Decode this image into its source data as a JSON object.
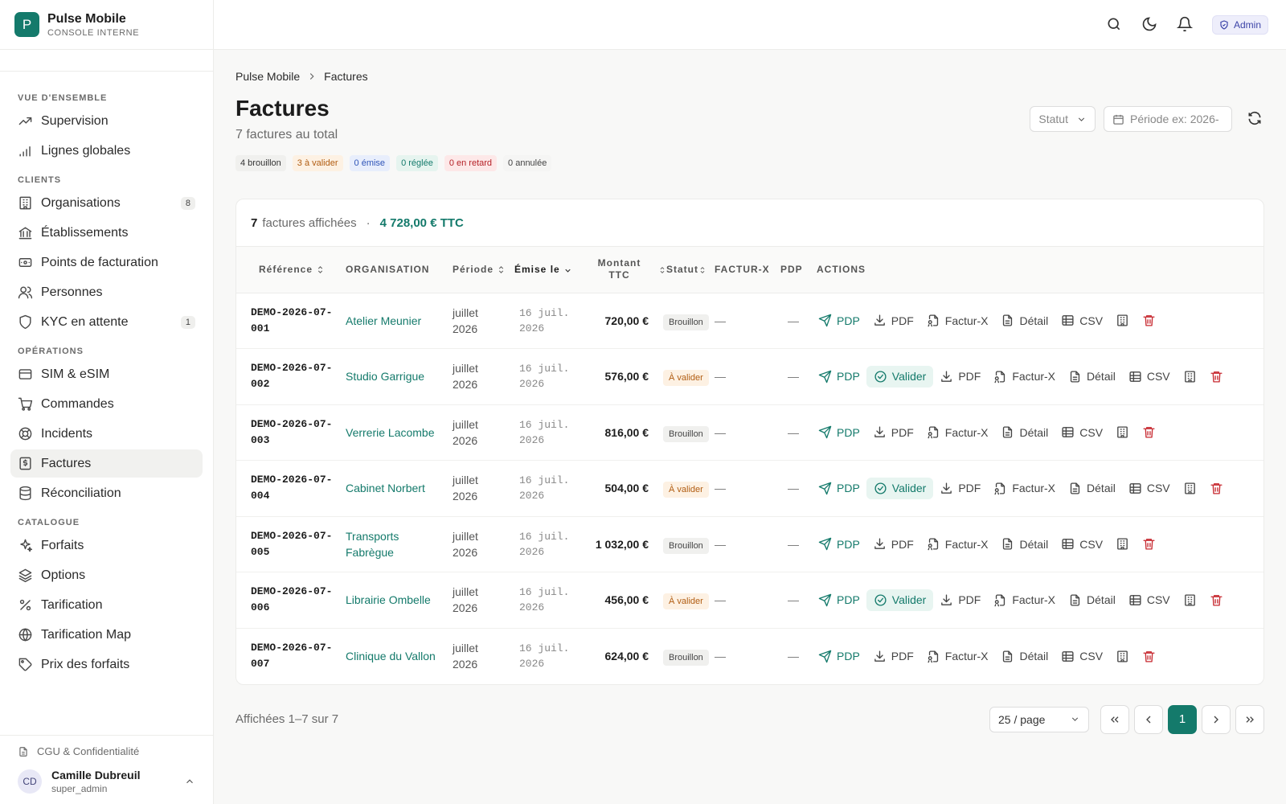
{
  "app": {
    "name": "Pulse Mobile",
    "subtitle": "CONSOLE INTERNE"
  },
  "topbar": {
    "role_badge": "Admin"
  },
  "sidebar": {
    "sections": [
      {
        "label": "VUE D'ENSEMBLE",
        "items": [
          {
            "label": "Supervision",
            "icon": "trend-icon"
          },
          {
            "label": "Lignes globales",
            "icon": "signal-icon"
          }
        ]
      },
      {
        "label": "CLIENTS",
        "items": [
          {
            "label": "Organisations",
            "icon": "building-icon",
            "count": "8"
          },
          {
            "label": "Établissements",
            "icon": "bank-icon"
          },
          {
            "label": "Points de facturation",
            "icon": "billing-point-icon"
          },
          {
            "label": "Personnes",
            "icon": "users-icon"
          },
          {
            "label": "KYC en attente",
            "icon": "shield-icon",
            "count": "1"
          }
        ]
      },
      {
        "label": "OPÉRATIONS",
        "items": [
          {
            "label": "SIM & eSIM",
            "icon": "card-icon"
          },
          {
            "label": "Commandes",
            "icon": "cart-icon"
          },
          {
            "label": "Incidents",
            "icon": "lifebuoy-icon"
          },
          {
            "label": "Factures",
            "icon": "invoice-icon",
            "active": true
          },
          {
            "label": "Réconciliation",
            "icon": "database-icon"
          }
        ]
      },
      {
        "label": "CATALOGUE",
        "items": [
          {
            "label": "Forfaits",
            "icon": "sparkles-icon"
          },
          {
            "label": "Options",
            "icon": "layers-icon"
          },
          {
            "label": "Tarification",
            "icon": "percent-icon"
          },
          {
            "label": "Tarification Map",
            "icon": "globe-icon"
          },
          {
            "label": "Prix des forfaits",
            "icon": "tag-icon"
          }
        ]
      }
    ],
    "legal": "CGU & Confidentialité",
    "user": {
      "initials": "CD",
      "name": "Camille Dubreuil",
      "role": "super_admin"
    }
  },
  "breadcrumb": {
    "root": "Pulse Mobile",
    "current": "Factures"
  },
  "page": {
    "title": "Factures",
    "subtitle": "7 factures au total"
  },
  "filters": {
    "status": "Statut",
    "period_placeholder": "Période ex: 2026-"
  },
  "chips": [
    {
      "label": "4 brouillon",
      "bg": "#f0f0ee",
      "fg": "#333333"
    },
    {
      "label": "3 à valider",
      "bg": "#fdf1e3",
      "fg": "#b15d12"
    },
    {
      "label": "0 émise",
      "bg": "#e8eefc",
      "fg": "#2f55b8"
    },
    {
      "label": "0 réglée",
      "bg": "#e6f4ef",
      "fg": "#147a6b"
    },
    {
      "label": "0 en retard",
      "bg": "#fde8e8",
      "fg": "#b52228"
    },
    {
      "label": "0 annulée",
      "bg": "#f5f5f4",
      "fg": "#444444"
    }
  ],
  "summary": {
    "count": "7",
    "label": "factures affichées",
    "sep": "·",
    "total": "4 728,00 € TTC"
  },
  "columns": {
    "reference": "Référence",
    "organisation": "ORGANISATION",
    "periode": "Période",
    "emise": "Émise le",
    "montant": "Montant TTC",
    "statut": "Statut",
    "facturx": "FACTUR-X",
    "pdp": "PDP",
    "actions": "ACTIONS"
  },
  "action_labels": {
    "pdp": "PDP",
    "valider": "Valider",
    "pdf": "PDF",
    "facturx": "Factur-X",
    "detail": "Détail",
    "csv": "CSV"
  },
  "rows": [
    {
      "ref1": "DEMO-2026-07-",
      "ref2": "001",
      "org": "Atelier Meunier",
      "p1": "juillet",
      "p2": "2026",
      "d1": "16 juil.",
      "d2": "2026",
      "amount": "720,00 €",
      "status": "Brouillon",
      "kind": "draft",
      "facturx": "—",
      "pdp": "—"
    },
    {
      "ref1": "DEMO-2026-07-",
      "ref2": "002",
      "org": "Studio Garrigue",
      "p1": "juillet",
      "p2": "2026",
      "d1": "16 juil.",
      "d2": "2026",
      "amount": "576,00 €",
      "status": "À valider",
      "kind": "val",
      "facturx": "—",
      "pdp": "—"
    },
    {
      "ref1": "DEMO-2026-07-",
      "ref2": "003",
      "org": "Verrerie Lacombe",
      "p1": "juillet",
      "p2": "2026",
      "d1": "16 juil.",
      "d2": "2026",
      "amount": "816,00 €",
      "status": "Brouillon",
      "kind": "draft",
      "facturx": "—",
      "pdp": "—"
    },
    {
      "ref1": "DEMO-2026-07-",
      "ref2": "004",
      "org": "Cabinet Norbert",
      "p1": "juillet",
      "p2": "2026",
      "d1": "16 juil.",
      "d2": "2026",
      "amount": "504,00 €",
      "status": "À valider",
      "kind": "val",
      "facturx": "—",
      "pdp": "—"
    },
    {
      "ref1": "DEMO-2026-07-",
      "ref2": "005",
      "org": "Transports Fabrègue",
      "p1": "juillet",
      "p2": "2026",
      "d1": "16 juil.",
      "d2": "2026",
      "amount": "1 032,00 €",
      "status": "Brouillon",
      "kind": "draft",
      "facturx": "—",
      "pdp": "—"
    },
    {
      "ref1": "DEMO-2026-07-",
      "ref2": "006",
      "org": "Librairie Ombelle",
      "p1": "juillet",
      "p2": "2026",
      "d1": "16 juil.",
      "d2": "2026",
      "amount": "456,00 €",
      "status": "À valider",
      "kind": "val",
      "facturx": "—",
      "pdp": "—"
    },
    {
      "ref1": "DEMO-2026-07-",
      "ref2": "007",
      "org": "Clinique du Vallon",
      "p1": "juillet",
      "p2": "2026",
      "d1": "16 juil.",
      "d2": "2026",
      "amount": "624,00 €",
      "status": "Brouillon",
      "kind": "draft",
      "facturx": "—",
      "pdp": "—"
    }
  ],
  "pagination": {
    "info": "Affichées 1–7 sur 7",
    "per_page": "25 / page",
    "current": "1"
  }
}
